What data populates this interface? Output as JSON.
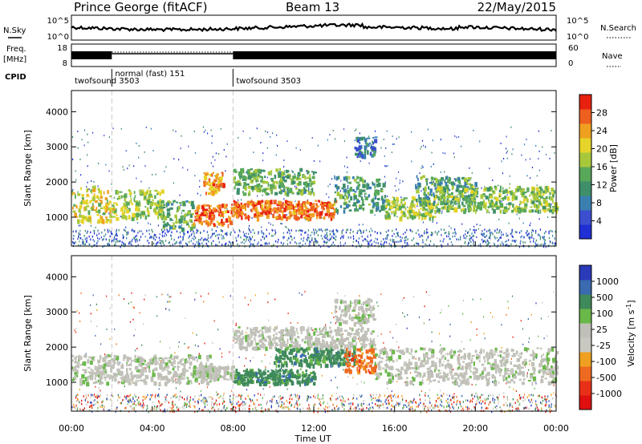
{
  "header": {
    "station": "Prince George (fitACF)",
    "beam": "Beam 13",
    "date": "22/May/2015"
  },
  "summary": {
    "nsky_label": "N.Sky",
    "nsearch_label": "N.Search",
    "freq_label_1": "Freq.",
    "freq_label_2": "[MHz]",
    "nave_label": "Nave",
    "cpid_label": "CPID",
    "nsky_ticks": [
      "10^5",
      "10^0"
    ],
    "nsearch_ticks": [
      "10^5",
      "10^0"
    ],
    "freq_ticks": [
      "18",
      "8"
    ],
    "nave_ticks": [
      "60",
      "0"
    ]
  },
  "cpid_segments": [
    {
      "label": "twofsound 3503",
      "start": 0,
      "end": 2
    },
    {
      "label": "normal (fast) 151",
      "start": 2,
      "end": 8
    },
    {
      "label": "twofsound 3503",
      "start": 8,
      "end": 24
    }
  ],
  "colors": {
    "power": [
      "#1f2fd4",
      "#3b4fcf",
      "#3a7fb0",
      "#3f8f6a",
      "#58a85a",
      "#a8c83c",
      "#e6d42a",
      "#f0a020",
      "#ee6020",
      "#e82010"
    ],
    "velocity": [
      "#2a3ab8",
      "#3a6ab0",
      "#3f8a5a",
      "#6ab84a",
      "#c0c0b8",
      "#c8c8c0",
      "#f0a020",
      "#ee6a20",
      "#e83018",
      "#e01010"
    ]
  },
  "chart_data": [
    {
      "type": "heatmap",
      "name": "power",
      "ylabel": "Slant Range [km]",
      "xlim": [
        0,
        24
      ],
      "ylim": [
        180,
        4600
      ],
      "yticks": [
        1000,
        2000,
        3000,
        4000
      ],
      "colorbar": {
        "label": "Power [dB]",
        "range": [
          0,
          32
        ],
        "ticks": [
          "28",
          "24",
          "20",
          "16",
          "12",
          "8",
          "4"
        ]
      },
      "bands": [
        {
          "t0": 0.0,
          "t1": 2.0,
          "r0": 900,
          "r1": 1900,
          "value": 20
        },
        {
          "t0": 2.0,
          "t1": 4.5,
          "r0": 1000,
          "r1": 1800,
          "value": 18
        },
        {
          "t0": 4.5,
          "t1": 6.0,
          "r0": 700,
          "r1": 1500,
          "value": 14
        },
        {
          "t0": 6.0,
          "t1": 8.0,
          "r0": 800,
          "r1": 1400,
          "value": 28
        },
        {
          "t0": 6.5,
          "t1": 7.5,
          "r0": 1700,
          "r1": 2300,
          "value": 26
        },
        {
          "t0": 8.0,
          "t1": 13.0,
          "r0": 1000,
          "r1": 1500,
          "value": 28
        },
        {
          "t0": 8.0,
          "t1": 12.0,
          "r0": 1700,
          "r1": 2400,
          "value": 14
        },
        {
          "t0": 13.0,
          "t1": 15.5,
          "r0": 1200,
          "r1": 2200,
          "value": 12
        },
        {
          "t0": 14.0,
          "t1": 15.0,
          "r0": 2700,
          "r1": 3300,
          "value": 8
        },
        {
          "t0": 15.5,
          "t1": 18.0,
          "r0": 1000,
          "r1": 1600,
          "value": 18
        },
        {
          "t0": 17.0,
          "t1": 20.0,
          "r0": 1400,
          "r1": 2200,
          "value": 12
        },
        {
          "t0": 18.0,
          "t1": 24.0,
          "r0": 1200,
          "r1": 1900,
          "value": 16
        }
      ]
    },
    {
      "type": "heatmap",
      "name": "velocity",
      "xlabel": "Time UT",
      "ylabel": "Slant Range [km]",
      "xlim": [
        0,
        24
      ],
      "ylim": [
        180,
        4600
      ],
      "xticks": [
        "00:00",
        "04:00",
        "08:00",
        "12:00",
        "16:00",
        "20:00",
        "00:00"
      ],
      "yticks": [
        1000,
        2000,
        3000,
        4000
      ],
      "colorbar": {
        "label": "Velocity [m s^-1]",
        "ticks": [
          "1000",
          "500",
          "100",
          "25",
          "-25",
          "-100",
          "-500",
          "-1000"
        ]
      },
      "bands": [
        {
          "t0": 0.0,
          "t1": 7.0,
          "r0": 1000,
          "r1": 1800,
          "value": 0
        },
        {
          "t0": 6.0,
          "t1": 8.0,
          "r0": 1100,
          "r1": 1500,
          "value": 0
        },
        {
          "t0": 8.0,
          "t1": 12.0,
          "r0": 1000,
          "r1": 1400,
          "value": 150
        },
        {
          "t0": 10.0,
          "t1": 14.0,
          "r0": 1500,
          "r1": 2000,
          "value": 200
        },
        {
          "t0": 13.5,
          "t1": 15.0,
          "r0": 1300,
          "r1": 2000,
          "value": -150
        },
        {
          "t0": 8.0,
          "t1": 15.0,
          "r0": 2000,
          "r1": 2600,
          "value": 0
        },
        {
          "t0": 13.0,
          "t1": 15.0,
          "r0": 2700,
          "r1": 3400,
          "value": 0
        },
        {
          "t0": 15.0,
          "t1": 24.0,
          "r0": 1000,
          "r1": 2000,
          "value": 0
        }
      ]
    }
  ]
}
